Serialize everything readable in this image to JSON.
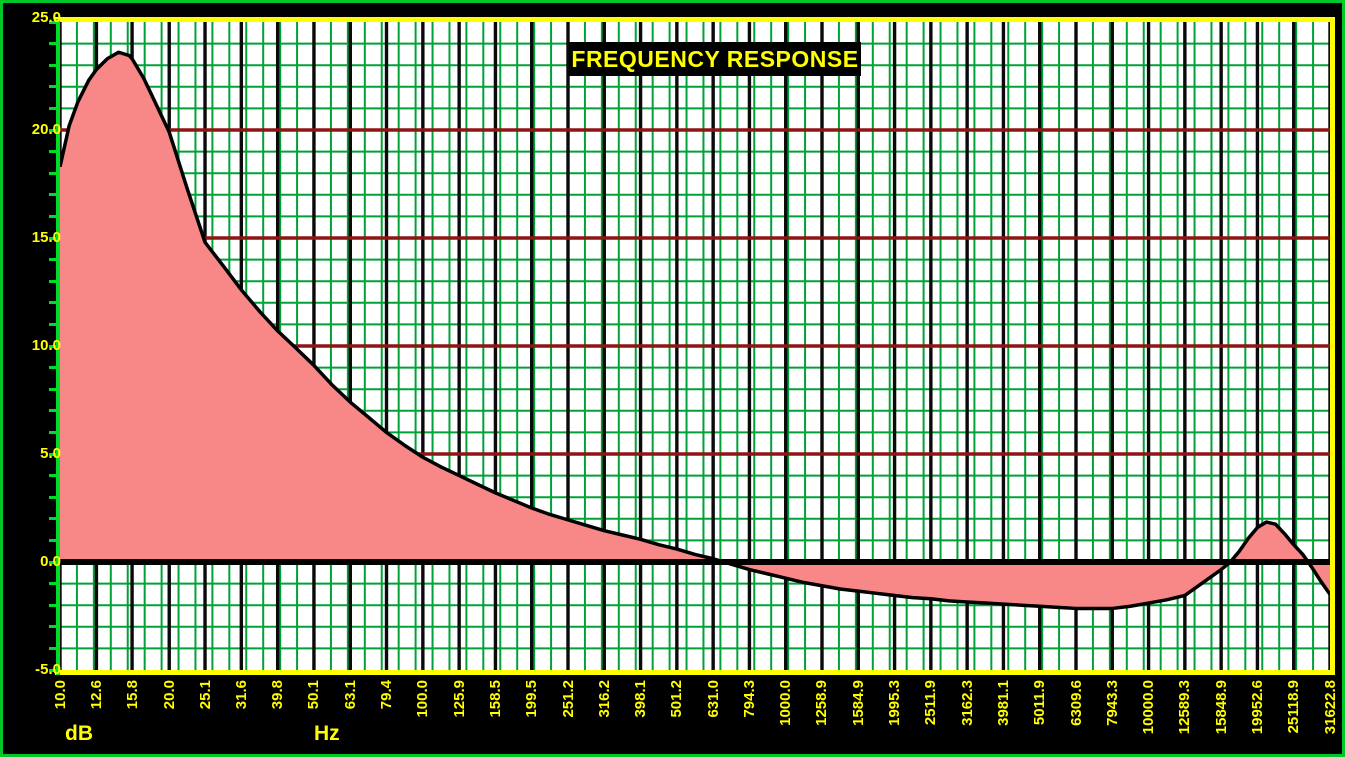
{
  "title": "FREQUENCY RESPONSE",
  "units": {
    "y": "dB",
    "x": "Hz"
  },
  "colors": {
    "background": "#000000",
    "outer_frame_green": "#00C828",
    "axis_green": "#00DC28",
    "plot_background": "#FFFFFF",
    "grid_green": "#00A238",
    "grid_black": "#0A0A0A",
    "grid_dark_red": "#8E1515",
    "zero_line_black": "#000000",
    "fill_pink": "#F88888",
    "curve_black": "#000000",
    "label_yellow": "#FFFF00",
    "title_background": "#000000"
  },
  "y_axis": {
    "tick_labels": [
      "25.0",
      "20.0",
      "15.0",
      "10.0",
      "5.0",
      "0.0",
      "-5.0"
    ],
    "tick_values": [
      25,
      20,
      15,
      10,
      5,
      0,
      -5
    ],
    "minor_tick_step_db": 1
  },
  "x_axis": {
    "tick_labels": [
      "10.0",
      "12.6",
      "15.8",
      "20.0",
      "25.1",
      "31.6",
      "39.8",
      "50.1",
      "63.1",
      "79.4",
      "100.0",
      "125.9",
      "158.5",
      "199.5",
      "251.2",
      "316.2",
      "398.1",
      "501.2",
      "631.0",
      "794.3",
      "1000.0",
      "1258.9",
      "1584.9",
      "1995.3",
      "2511.9",
      "3162.3",
      "3981.1",
      "5011.9",
      "6309.6",
      "7943.3",
      "10000.0",
      "12589.3",
      "15848.9",
      "19952.6",
      "25118.9",
      "31622.8"
    ],
    "tick_values": [
      10,
      12.6,
      15.8,
      20,
      25.1,
      31.6,
      39.8,
      50.1,
      63.1,
      79.4,
      100,
      125.9,
      158.5,
      199.5,
      251.2,
      316.2,
      398.1,
      501.2,
      631,
      794.3,
      1000,
      1258.9,
      1584.9,
      1995.3,
      2511.9,
      3162.3,
      3981.1,
      5011.9,
      6309.6,
      7943.3,
      10000,
      12589.3,
      15848.9,
      19952.6,
      25118.9,
      31622.8
    ]
  },
  "chart_data": {
    "type": "area",
    "title": "FREQUENCY RESPONSE",
    "xlabel": "Hz",
    "ylabel": "dB",
    "x_scale": "log",
    "xlim": [
      10,
      31622.8
    ],
    "ylim": [
      -5,
      25
    ],
    "grid": {
      "minor_horizontal_db_step": 1,
      "major_horizontal_red_db": [
        5,
        10,
        15,
        20
      ],
      "zero_line_db": 0,
      "major_vertical_black_step_decades": 0.1,
      "minor_vertical_green_count": 75
    },
    "legend": "none",
    "baseline_db": 0,
    "fill_to_baseline": true,
    "points": [
      [
        10,
        18.3
      ],
      [
        10.6,
        20.2
      ],
      [
        11.2,
        21.3
      ],
      [
        12.0,
        22.3
      ],
      [
        12.6,
        22.8
      ],
      [
        13.5,
        23.3
      ],
      [
        14.5,
        23.6
      ],
      [
        15.5,
        23.45
      ],
      [
        15.8,
        23.3
      ],
      [
        17.0,
        22.4
      ],
      [
        17.8,
        21.7
      ],
      [
        20,
        19.9
      ],
      [
        22.4,
        17.3
      ],
      [
        25.1,
        14.8
      ],
      [
        28.2,
        13.7
      ],
      [
        31.6,
        12.6
      ],
      [
        35.5,
        11.6
      ],
      [
        39.8,
        10.7
      ],
      [
        44.7,
        9.9
      ],
      [
        50.1,
        9.1
      ],
      [
        56.2,
        8.2
      ],
      [
        63.1,
        7.4
      ],
      [
        70.8,
        6.7
      ],
      [
        79.4,
        6.0
      ],
      [
        89.1,
        5.4
      ],
      [
        100,
        4.85
      ],
      [
        112.2,
        4.4
      ],
      [
        125.9,
        4.0
      ],
      [
        141.3,
        3.6
      ],
      [
        158.5,
        3.2
      ],
      [
        177.8,
        2.85
      ],
      [
        199.5,
        2.5
      ],
      [
        223.9,
        2.2
      ],
      [
        251.2,
        1.95
      ],
      [
        281.8,
        1.7
      ],
      [
        316.2,
        1.45
      ],
      [
        354.8,
        1.25
      ],
      [
        398.1,
        1.05
      ],
      [
        446.7,
        0.8
      ],
      [
        501.2,
        0.6
      ],
      [
        562.3,
        0.35
      ],
      [
        631,
        0.15
      ],
      [
        707.9,
        -0.1
      ],
      [
        794.3,
        -0.35
      ],
      [
        891.3,
        -0.55
      ],
      [
        1000,
        -0.75
      ],
      [
        1122,
        -0.95
      ],
      [
        1258.9,
        -1.1
      ],
      [
        1412.5,
        -1.25
      ],
      [
        1584.9,
        -1.35
      ],
      [
        1778.3,
        -1.45
      ],
      [
        1995.3,
        -1.55
      ],
      [
        2238.7,
        -1.65
      ],
      [
        2511.9,
        -1.7
      ],
      [
        2818.4,
        -1.8
      ],
      [
        3162.3,
        -1.85
      ],
      [
        3548.1,
        -1.9
      ],
      [
        3981.1,
        -1.95
      ],
      [
        4466.8,
        -2.0
      ],
      [
        5011.9,
        -2.05
      ],
      [
        5623.4,
        -2.1
      ],
      [
        6309.6,
        -2.15
      ],
      [
        7079.5,
        -2.15
      ],
      [
        7943.3,
        -2.15
      ],
      [
        8912.5,
        -2.05
      ],
      [
        10000,
        -1.9
      ],
      [
        11220,
        -1.75
      ],
      [
        12589.3,
        -1.55
      ],
      [
        14125.4,
        -0.95
      ],
      [
        15848.9,
        -0.35
      ],
      [
        16800,
        0.0
      ],
      [
        17782.8,
        0.5
      ],
      [
        18836,
        1.1
      ],
      [
        19952.6,
        1.6
      ],
      [
        21135,
        1.85
      ],
      [
        22387,
        1.75
      ],
      [
        23714,
        1.3
      ],
      [
        25118.9,
        0.8
      ],
      [
        26607,
        0.35
      ],
      [
        28184,
        -0.25
      ],
      [
        29854,
        -0.9
      ],
      [
        31622.8,
        -1.5
      ]
    ]
  }
}
